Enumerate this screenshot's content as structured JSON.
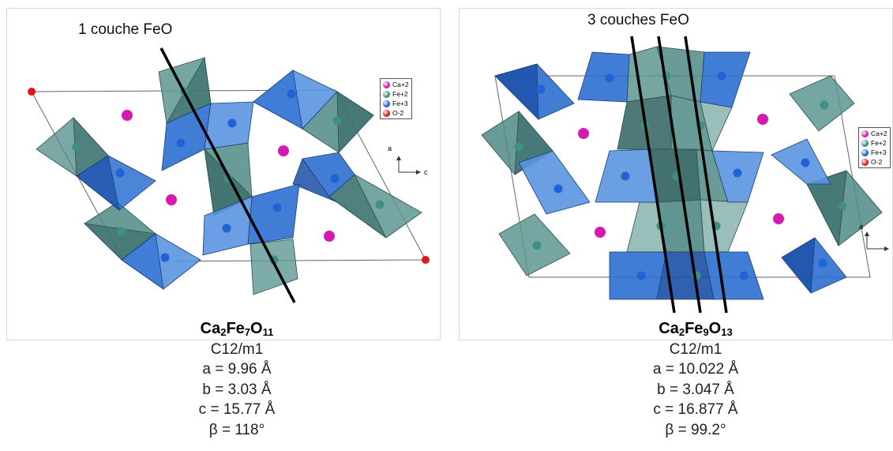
{
  "left": {
    "annotation": "1 couche FeO",
    "formula": [
      {
        "t": "Ca",
        "sub": "2"
      },
      {
        "t": "Fe",
        "sub": "7"
      },
      {
        "t": "O",
        "sub": "11"
      }
    ],
    "space_group": "C12/m1",
    "params": [
      "a = 9.96 Å",
      "b = 3.03 Å",
      "c = 15.77 Å",
      "β = 118°"
    ]
  },
  "right": {
    "annotation": "3 couches FeO",
    "formula": [
      {
        "t": "Ca",
        "sub": "2"
      },
      {
        "t": "Fe",
        "sub": "9"
      },
      {
        "t": "O",
        "sub": "13"
      }
    ],
    "space_group": "C12/m1",
    "params": [
      "a = 10.022 Å",
      "b = 3.047 Å",
      "c = 16.877 Å",
      "β = 99.2°"
    ]
  },
  "legend": [
    {
      "label": "Ca+2",
      "color": "#d61ab0"
    },
    {
      "label": "Fe+2",
      "color": "#3e8f86"
    },
    {
      "label": "Fe+3",
      "color": "#1f63d6"
    },
    {
      "label": "O-2",
      "color": "#e01515"
    }
  ],
  "axes": {
    "a": "a",
    "c": "c"
  },
  "colors": {
    "fe2_poly": "#4f8a86",
    "fe2_poly_dark": "#2f6260",
    "fe3_poly": "#2d6fd0",
    "fe3_poly_light": "#5a95e0",
    "fe3_poly_dark": "#1b4fa6",
    "ca_atom": "#d61ab0",
    "o_atom": "#e01515"
  }
}
